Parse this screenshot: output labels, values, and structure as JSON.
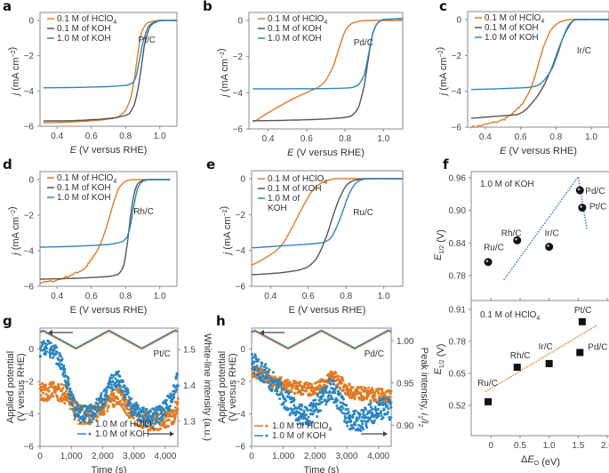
{
  "colors": {
    "hclo4": "#e07a22",
    "koh01": "#555555",
    "koh10": "#2a86c0",
    "frame": "#888888"
  },
  "chart_data": [
    {
      "panel": "a",
      "type": "line",
      "annotation": "Pt/C",
      "xlabel": "E (V versus RHE)",
      "ylabel": "j (mA cm^-2)",
      "xlim": [
        0.3,
        1.1
      ],
      "ylim": [
        -6,
        0.5
      ],
      "xticks": [
        "0.4",
        "0.6",
        "0.8",
        "1.0"
      ],
      "yticks": [
        "0",
        "-2",
        "-4",
        "-6"
      ],
      "legend": [
        "0.1 M of HClO4",
        "0.1 M of KOH",
        "1.0 M of KOH"
      ],
      "series": [
        {
          "name": "0.1 M of HClO4",
          "x": [
            0.32,
            0.5,
            0.65,
            0.75,
            0.8,
            0.83,
            0.85,
            0.87,
            0.89,
            0.92,
            0.96,
            1.0,
            1.1
          ],
          "y": [
            -5.8,
            -5.75,
            -5.65,
            -5.5,
            -5.1,
            -4.4,
            -3.4,
            -2.0,
            -0.8,
            -0.2,
            -0.05,
            0,
            0
          ]
        },
        {
          "name": "0.1 M of KOH",
          "x": [
            0.32,
            0.5,
            0.65,
            0.75,
            0.82,
            0.85,
            0.87,
            0.89,
            0.91,
            0.94,
            0.98,
            1.02,
            1.1
          ],
          "y": [
            -5.7,
            -5.68,
            -5.6,
            -5.5,
            -5.3,
            -4.8,
            -4.0,
            -2.8,
            -1.4,
            -0.4,
            -0.08,
            0,
            0
          ]
        },
        {
          "name": "1.0 M of KOH",
          "x": [
            0.32,
            0.5,
            0.7,
            0.8,
            0.84,
            0.86,
            0.88,
            0.9,
            0.93,
            0.97,
            1.0,
            1.1
          ],
          "y": [
            -3.82,
            -3.8,
            -3.75,
            -3.68,
            -3.55,
            -3.2,
            -2.3,
            -1.3,
            -0.4,
            -0.08,
            0,
            0
          ]
        }
      ]
    },
    {
      "panel": "b",
      "type": "line",
      "annotation": "Pd/C",
      "xlabel": "E (V versus RHE)",
      "ylabel": "j (mA cm^-2)",
      "xlim": [
        0.3,
        1.1
      ],
      "ylim": [
        -6,
        0.5
      ],
      "xticks": [
        "0.4",
        "0.6",
        "0.8",
        "1.0"
      ],
      "yticks": [
        "0",
        "-2",
        "-4",
        "-6"
      ],
      "legend": [
        "0.1 M of HClO4",
        "0.1 M of KOH",
        "1.0 M of KOH"
      ],
      "series": [
        {
          "name": "0.1 M of HClO4",
          "x": [
            0.32,
            0.4,
            0.5,
            0.6,
            0.66,
            0.7,
            0.74,
            0.77,
            0.8,
            0.83,
            0.87,
            0.92,
            1.0,
            1.1
          ],
          "y": [
            -5.6,
            -5.1,
            -4.5,
            -4.0,
            -3.7,
            -3.3,
            -2.5,
            -1.5,
            -0.6,
            -0.2,
            -0.05,
            0,
            0,
            0
          ]
        },
        {
          "name": "0.1 M of KOH",
          "x": [
            0.32,
            0.5,
            0.7,
            0.83,
            0.87,
            0.9,
            0.92,
            0.94,
            0.96,
            0.98,
            1.0,
            1.1
          ],
          "y": [
            -5.55,
            -5.52,
            -5.45,
            -5.3,
            -4.8,
            -3.6,
            -2.2,
            -0.9,
            -0.3,
            -0.05,
            0.05,
            0.1
          ]
        },
        {
          "name": "1.0 M of KOH",
          "x": [
            0.32,
            0.5,
            0.7,
            0.83,
            0.87,
            0.9,
            0.92,
            0.94,
            0.96,
            0.98,
            1.0,
            1.1
          ],
          "y": [
            -3.78,
            -3.78,
            -3.77,
            -3.72,
            -3.55,
            -3.0,
            -2.0,
            -0.9,
            -0.3,
            -0.05,
            0.05,
            0.1
          ]
        }
      ]
    },
    {
      "panel": "c",
      "type": "line",
      "annotation": "Ir/C",
      "xlabel": "E (V versus RHE)",
      "ylabel": "j (mA cm^-2)",
      "xlim": [
        0.3,
        1.1
      ],
      "ylim": [
        -6,
        0.1
      ],
      "xticks": [
        "0.4",
        "0.6",
        "0.8",
        "1.0"
      ],
      "yticks": [
        "0",
        "-2",
        "-4",
        "-6"
      ],
      "legend": [
        "0.1 M of HClO4",
        "0.1 M of KOH",
        "1.0 M of KOH"
      ],
      "series": [
        {
          "name": "0.1 M of HClO4",
          "x": [
            0.32,
            0.4,
            0.5,
            0.56,
            0.6,
            0.64,
            0.67,
            0.7,
            0.73,
            0.77,
            0.82,
            0.88,
            0.95,
            1.1
          ],
          "y": [
            -6.0,
            -5.85,
            -5.6,
            -5.2,
            -4.8,
            -4.2,
            -3.5,
            -2.5,
            -1.5,
            -0.6,
            -0.15,
            0,
            0,
            0
          ]
        },
        {
          "name": "0.1 M of KOH",
          "x": [
            0.32,
            0.45,
            0.58,
            0.62,
            0.66,
            0.7,
            0.74,
            0.78,
            0.82,
            0.86,
            0.9,
            0.95,
            1.1
          ],
          "y": [
            -5.5,
            -5.4,
            -5.3,
            -5.1,
            -4.7,
            -4.2,
            -3.5,
            -2.6,
            -1.5,
            -0.6,
            -0.05,
            0,
            0
          ]
        },
        {
          "name": "1.0 M of KOH",
          "x": [
            0.32,
            0.5,
            0.65,
            0.7,
            0.74,
            0.78,
            0.81,
            0.84,
            0.87,
            0.9,
            0.95,
            1.1
          ],
          "y": [
            -3.9,
            -3.85,
            -3.78,
            -3.65,
            -3.3,
            -2.7,
            -1.9,
            -1.0,
            -0.35,
            -0.05,
            0,
            0
          ]
        }
      ]
    },
    {
      "panel": "d",
      "type": "line",
      "annotation": "Rh/C",
      "xlabel": "E (V versus RHE)",
      "ylabel": "j (mA cm^-2)",
      "xlim": [
        0.3,
        1.1
      ],
      "ylim": [
        -6,
        0.3
      ],
      "xticks": [
        "0.4",
        "0.6",
        "0.8",
        "1.0"
      ],
      "yticks": [
        "0",
        "-2",
        "-4",
        "-6"
      ],
      "legend": [
        "0.1 M of HClO4",
        "0.1 M of KOH",
        "1.0 M of KOH"
      ],
      "series": [
        {
          "name": "0.1 M of HClO4",
          "x": [
            0.3,
            0.4,
            0.5,
            0.56,
            0.6,
            0.64,
            0.67,
            0.7,
            0.73,
            0.76,
            0.8,
            0.85,
            0.9,
            1.06
          ],
          "y": [
            -5.8,
            -5.65,
            -5.3,
            -5.0,
            -4.5,
            -3.9,
            -3.2,
            -2.3,
            -1.3,
            -0.5,
            -0.1,
            0,
            0,
            0
          ]
        },
        {
          "name": "0.1 M of KOH",
          "x": [
            0.3,
            0.5,
            0.7,
            0.76,
            0.79,
            0.81,
            0.83,
            0.85,
            0.87,
            0.9,
            0.95,
            1.06
          ],
          "y": [
            -5.6,
            -5.55,
            -5.45,
            -5.3,
            -4.8,
            -3.6,
            -2.0,
            -0.8,
            -0.25,
            -0.05,
            0,
            0
          ]
        },
        {
          "name": "1.0 M of KOH",
          "x": [
            0.3,
            0.5,
            0.7,
            0.78,
            0.81,
            0.83,
            0.85,
            0.87,
            0.9,
            0.95,
            1.06
          ],
          "y": [
            -3.8,
            -3.75,
            -3.65,
            -3.5,
            -3.2,
            -2.5,
            -1.4,
            -0.5,
            -0.1,
            0,
            0
          ]
        }
      ]
    },
    {
      "panel": "e",
      "type": "line",
      "annotation": "Ru/C",
      "xlabel": "E (V versus RHE)",
      "ylabel": "j (mA cm^-2)",
      "xlim": [
        0.3,
        1.1
      ],
      "ylim": [
        -6,
        0.3
      ],
      "xticks": [
        "0.4",
        "0.6",
        "0.8",
        "1.0"
      ],
      "yticks": [
        "0",
        "-2",
        "-4",
        "-6"
      ],
      "legend": [
        "0.1 M of HClO4",
        "0.1 M of KOH",
        "1.0 M of KOH"
      ],
      "series": [
        {
          "name": "0.1 M of HClO4",
          "x": [
            0.3,
            0.36,
            0.42,
            0.46,
            0.5,
            0.54,
            0.58,
            0.62,
            0.66,
            0.7,
            0.75,
            0.82,
            0.9,
            1.1
          ],
          "y": [
            -4.8,
            -4.5,
            -4.1,
            -3.7,
            -3.0,
            -2.2,
            -1.4,
            -0.7,
            -0.3,
            -0.1,
            0,
            0,
            0,
            0
          ]
        },
        {
          "name": "0.1 M of KOH",
          "x": [
            0.3,
            0.45,
            0.55,
            0.6,
            0.64,
            0.67,
            0.7,
            0.73,
            0.76,
            0.8,
            0.84,
            0.9,
            1.1
          ],
          "y": [
            -5.35,
            -5.25,
            -5.1,
            -4.9,
            -4.5,
            -3.9,
            -3.1,
            -2.1,
            -1.2,
            -0.4,
            -0.1,
            0,
            0
          ]
        },
        {
          "name": "1.0 M of KOH",
          "x": [
            0.3,
            0.45,
            0.6,
            0.68,
            0.72,
            0.75,
            0.78,
            0.81,
            0.84,
            0.87,
            0.92,
            1.1
          ],
          "y": [
            -3.85,
            -3.75,
            -3.65,
            -3.55,
            -3.3,
            -2.7,
            -1.9,
            -1.0,
            -0.4,
            -0.1,
            0,
            0
          ]
        }
      ]
    },
    {
      "panel": "f-top",
      "type": "scatter",
      "annotation": "1.0 M of KOH",
      "ylabel": "E1/2 (V)",
      "ylim": [
        0.75,
        0.97
      ],
      "xlim": [
        -0.25,
        2.0
      ],
      "yticks": [
        "0.96",
        "0.90",
        "0.84",
        "0.78"
      ],
      "points": [
        {
          "label": "Ru/C",
          "x": -0.05,
          "y": 0.805
        },
        {
          "label": "Rh/C",
          "x": 0.45,
          "y": 0.845
        },
        {
          "label": "Ir/C",
          "x": 1.0,
          "y": 0.833
        },
        {
          "label": "Pd/C",
          "x": 1.53,
          "y": 0.937
        },
        {
          "label": "Pt/C",
          "x": 1.57,
          "y": 0.905
        }
      ],
      "trend": {
        "x": [
          0.22,
          1.5,
          1.65
        ],
        "y": [
          0.772,
          0.962,
          0.866
        ]
      }
    },
    {
      "panel": "f-bottom",
      "type": "scatter",
      "annotation": "0.1 M of HClO4",
      "xlabel": "ΔEO (eV)",
      "ylabel": "E1/2 (V)",
      "ylim": [
        0.4,
        0.91
      ],
      "xlim": [
        -0.25,
        2.0
      ],
      "xticks": [
        "0",
        "0.5",
        "1.0",
        "1.5",
        "2.0"
      ],
      "yticks": [
        "0.91",
        "0.78",
        "0.65",
        "0.52"
      ],
      "points": [
        {
          "label": "Ru/C",
          "x": -0.05,
          "y": 0.535
        },
        {
          "label": "Rh/C",
          "x": 0.45,
          "y": 0.675
        },
        {
          "label": "Ir/C",
          "x": 1.0,
          "y": 0.69
        },
        {
          "label": "Pd/C",
          "x": 1.53,
          "y": 0.735
        },
        {
          "label": "Pt/C",
          "x": 1.57,
          "y": 0.86
        }
      ],
      "trend": {
        "x": [
          -0.1,
          1.82
        ],
        "y": [
          0.575,
          0.845
        ]
      }
    },
    {
      "panel": "g",
      "type": "scatter",
      "annotation": "Pt/C",
      "xlabel": "Time (s)",
      "ylabel": "Applied potential (V versus RHE)",
      "ylabel_right": "White-line intensity (a.u.)",
      "xlim": [
        0,
        4400
      ],
      "ylim": [
        -6,
        1.3
      ],
      "ylim_right": [
        1.23,
        1.56
      ],
      "xticks": [
        "0",
        "1,000",
        "2,000",
        "3,000",
        "4,000"
      ],
      "yticks": [
        "0",
        "-2",
        "-4",
        "-6"
      ],
      "yticks_right": [
        "1.5",
        "1.4",
        "1.3"
      ],
      "legend": [
        "1.0 M of HClO4",
        "1.0 M of KOH"
      ],
      "potential": {
        "x": [
          0,
          100,
          1150,
          2200,
          3250,
          4300,
          4400
        ],
        "y": [
          1.0,
          1.1,
          0.0,
          1.1,
          0.0,
          1.1,
          1.05
        ]
      },
      "series": [
        {
          "name": "1.0 M of HClO4",
          "trend_x": [
            0,
            400,
            800,
            1100,
            1500,
            1900,
            2300,
            2500,
            2700,
            3100,
            3500,
            3900,
            4200,
            4400
          ],
          "trend_y": [
            1.38,
            1.385,
            1.375,
            1.33,
            1.315,
            1.33,
            1.36,
            1.375,
            1.345,
            1.31,
            1.3,
            1.3,
            1.31,
            1.345
          ]
        },
        {
          "name": "1.0 M of KOH",
          "trend_x": [
            0,
            200,
            500,
            800,
            1000,
            1200,
            1600,
            2000,
            2300,
            2500,
            2700,
            3000,
            3400,
            3800,
            4100,
            4400
          ],
          "trend_y": [
            1.505,
            1.51,
            1.49,
            1.43,
            1.36,
            1.32,
            1.32,
            1.36,
            1.41,
            1.415,
            1.38,
            1.33,
            1.31,
            1.32,
            1.35,
            1.42
          ]
        }
      ]
    },
    {
      "panel": "h",
      "type": "scatter",
      "annotation": "Pd/C",
      "xlabel": "Time (s)",
      "ylabel": "Applied potential (V versus RHE)",
      "ylabel_right": "Peak intensity, i1/i2",
      "xlim": [
        0,
        4400
      ],
      "ylim": [
        -6,
        1.3
      ],
      "ylim_right": [
        0.875,
        1.015
      ],
      "xticks": [
        "0",
        "1,000",
        "2,000",
        "3,000",
        "4,000"
      ],
      "yticks": [
        "0",
        "-2",
        "-4",
        "-6"
      ],
      "yticks_right": [
        "1.00",
        "0.95",
        "0.90"
      ],
      "legend": [
        "1.0 M of HClO4",
        "1.0 M of KOH"
      ],
      "potential": {
        "x": [
          0,
          100,
          1150,
          2200,
          3250,
          4300,
          4400
        ],
        "y": [
          1.0,
          1.1,
          0.0,
          1.1,
          0.0,
          1.1,
          1.05
        ]
      },
      "series": [
        {
          "name": "1.0 M of HClO4",
          "trend_x": [
            0,
            400,
            800,
            1200,
            1600,
            2000,
            2300,
            2500,
            2800,
            3100,
            3500,
            3900,
            4400
          ],
          "trend_y": [
            0.965,
            0.958,
            0.95,
            0.945,
            0.943,
            0.943,
            0.948,
            0.96,
            0.95,
            0.94,
            0.937,
            0.936,
            0.934
          ]
        },
        {
          "name": "1.0 M of KOH",
          "trend_x": [
            0,
            300,
            700,
            1000,
            1400,
            1800,
            2200,
            2500,
            2800,
            3100,
            3400,
            3800,
            4200,
            4400
          ],
          "trend_y": [
            0.975,
            0.965,
            0.95,
            0.935,
            0.915,
            0.91,
            0.93,
            0.945,
            0.925,
            0.905,
            0.905,
            0.915,
            0.92,
            0.915
          ]
        }
      ]
    }
  ]
}
